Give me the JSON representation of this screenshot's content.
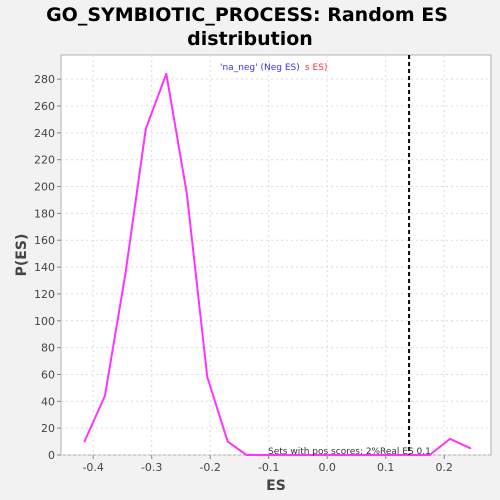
{
  "chart_data": {
    "type": "line",
    "title_line1": "GO_SYMBIOTIC_PROCESS: Random ES",
    "title_line2": "distribution",
    "xlabel": "ES",
    "ylabel": "P(ES)",
    "xlim": [
      -0.455,
      0.28
    ],
    "ylim": [
      0,
      298
    ],
    "xticks": [
      -0.4,
      -0.3,
      -0.2,
      -0.1,
      0.0,
      0.1,
      0.2
    ],
    "xtick_labels": [
      "-0.4",
      "-0.3",
      "-0.2",
      "-0.1",
      "0.0",
      "0.1",
      "0.2"
    ],
    "yticks": [
      0,
      20,
      40,
      60,
      80,
      100,
      120,
      140,
      160,
      180,
      200,
      220,
      240,
      260,
      280
    ],
    "ytick_labels": [
      "0",
      "20",
      "40",
      "60",
      "80",
      "100",
      "120",
      "140",
      "160",
      "180",
      "200",
      "220",
      "240",
      "260",
      "280"
    ],
    "grid": true,
    "series": [
      {
        "color": "#ff33ff",
        "x": [
          -0.415,
          -0.38,
          -0.345,
          -0.31,
          -0.275,
          -0.24,
          -0.205,
          -0.17,
          -0.138,
          -0.103,
          -0.07,
          -0.035,
          0.0,
          0.035,
          0.07,
          0.105,
          0.14,
          0.175,
          0.21,
          0.245
        ],
        "y": [
          10,
          44,
          135,
          243,
          284,
          195,
          58,
          10,
          0,
          0,
          0,
          0,
          0,
          0,
          0,
          0,
          0,
          0,
          12,
          5
        ]
      }
    ],
    "real_es": 0.14,
    "real_es_color": "#000000",
    "legend": {
      "part1": "'na_neg' (Neg ES)",
      "part1_color": "#3333ff",
      "part2": "s ES)",
      "part2_color": "#ff3333"
    },
    "annotations": {
      "pos_scores": "Sets with pos scores: 2%",
      "real_es": "Real ES 0.1"
    }
  }
}
